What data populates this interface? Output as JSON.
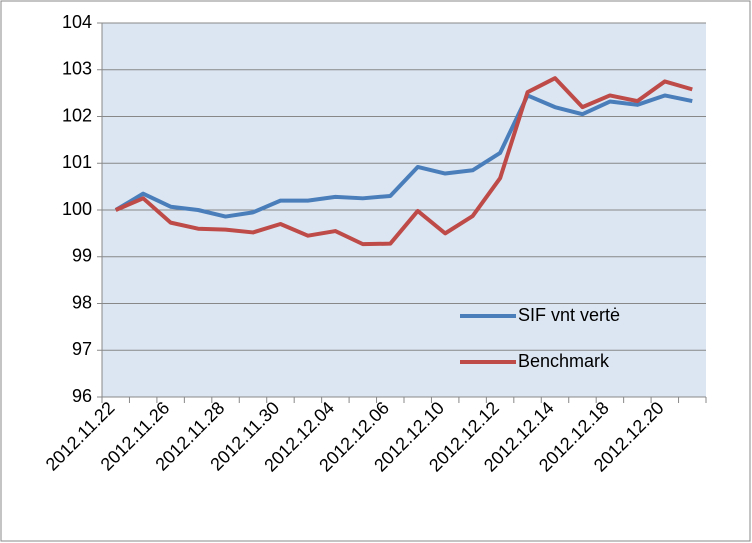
{
  "chart_data": {
    "type": "line",
    "categories": [
      "2012.11.22",
      null,
      "2012.11.26",
      null,
      "2012.11.28",
      null,
      "2012.11.30",
      null,
      "2012.12.04",
      null,
      "2012.12.06",
      null,
      "2012.12.10",
      null,
      "2012.12.12",
      null,
      "2012.12.14",
      null,
      "2012.12.18",
      null,
      "2012.12.20",
      null
    ],
    "series": [
      {
        "name": "SIF vnt vertė",
        "color": "#4a7ebb",
        "values": [
          100,
          100.35,
          100.07,
          100.0,
          99.86,
          99.95,
          100.2,
          100.2,
          100.28,
          100.25,
          100.3,
          100.92,
          100.78,
          100.85,
          101.22,
          102.45,
          102.2,
          102.05,
          102.32,
          102.25,
          102.45,
          102.33
        ]
      },
      {
        "name": "Benchmark",
        "color": "#be4b48",
        "values": [
          100,
          100.25,
          99.73,
          99.6,
          99.58,
          99.52,
          99.7,
          99.45,
          99.55,
          99.27,
          99.28,
          99.98,
          99.5,
          99.87,
          100.68,
          102.52,
          102.82,
          102.2,
          102.45,
          102.33,
          102.75,
          102.58
        ]
      }
    ],
    "ylim": [
      96,
      104
    ],
    "yticks": [
      96,
      97,
      98,
      99,
      100,
      101,
      102,
      103,
      104
    ],
    "grid": true,
    "legend": "lower right",
    "plot_background": "#dce6f2"
  }
}
